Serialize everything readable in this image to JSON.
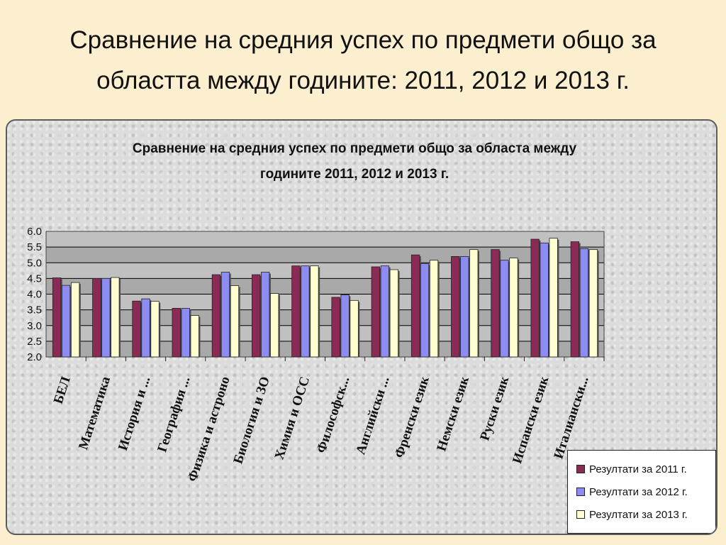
{
  "slide": {
    "title_line1": "Сравнение на средния успех по предмети общо за",
    "title_line2": "областта между годините: 2011, 2012 и 2013 г."
  },
  "chart_data": {
    "type": "bar",
    "title_line1": "Сравнение на средния успех по предмети общо за областа между",
    "title_line2": "годините 2011, 2012 и 2013 г.",
    "categories": [
      "БЕЛ",
      "Математика",
      "История и ...",
      "География ...",
      "Физика и астроно",
      "Биология и ЗО",
      "Химия и ОСС",
      "Философск...",
      "Английски ...",
      "Френски език",
      "Немски език",
      "Руски език",
      "Испански език",
      "Италиански..."
    ],
    "series": [
      {
        "name": "Резултати за 2011 г.",
        "color": "#8b2a55",
        "values": [
          4.52,
          4.5,
          3.78,
          3.55,
          4.62,
          4.62,
          4.9,
          3.9,
          4.87,
          5.25,
          5.2,
          5.42,
          5.75,
          5.67
        ]
      },
      {
        "name": "Резултати  за 2012 г.",
        "color": "#8c8cf2",
        "values": [
          4.28,
          4.5,
          3.85,
          3.55,
          4.7,
          4.7,
          4.9,
          3.98,
          4.9,
          4.97,
          5.2,
          5.08,
          5.63,
          5.45
        ]
      },
      {
        "name": "Резултати  за 2013 г.",
        "color": "#fefed0",
        "values": [
          4.37,
          4.53,
          3.77,
          3.32,
          4.27,
          4.02,
          4.9,
          3.8,
          4.78,
          5.08,
          5.42,
          5.15,
          5.78,
          5.42
        ]
      }
    ],
    "yticks": [
      "2.0",
      "2.5",
      "3.0",
      "3.5",
      "4.0",
      "4.5",
      "5.0",
      "5.5",
      "6.0"
    ],
    "ylim": [
      2.0,
      6.0
    ],
    "grid": true,
    "legend_position": "bottom-right"
  }
}
